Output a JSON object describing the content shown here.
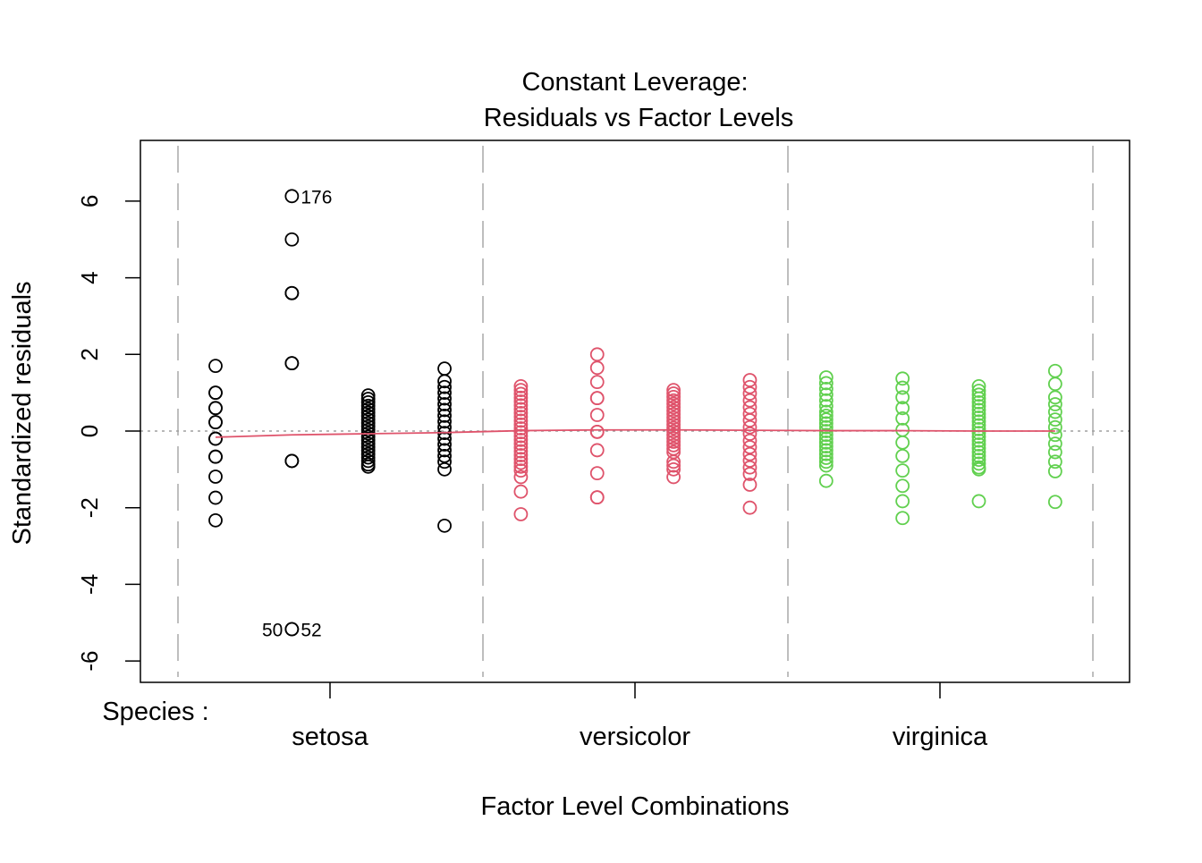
{
  "chart_data": {
    "type": "scatter",
    "title": "Constant Leverage:\nResiduals vs Factor Levels",
    "title_lines": [
      "Constant Leverage:",
      "Residuals vs Factor Levels"
    ],
    "xlabel": "Factor Level Combinations",
    "ylabel": "Standardized residuals",
    "factor_label": "Species :",
    "factor_levels": [
      "setosa",
      "versicolor",
      "virginica"
    ],
    "ylim": [
      -6.5,
      7.5
    ],
    "yticks": [
      -6,
      -4,
      -2,
      0,
      2,
      4,
      6
    ],
    "grid": false,
    "colors": {
      "setosa": "#000000",
      "versicolor": "#DF536B",
      "virginica": "#61D04F",
      "smooth": "#DF536B",
      "reference": "#A0A0A0",
      "separator": "#BEBEBE"
    },
    "columns": [
      {
        "group": "setosa",
        "values": [
          1.7,
          1.0,
          1.0,
          0.6,
          0.6,
          0.23,
          0.23,
          -0.2,
          -0.2,
          -0.67,
          -0.67,
          -1.19,
          -1.74,
          -2.33
        ]
      },
      {
        "group": "setosa",
        "values": [
          6.13,
          5.0,
          3.6,
          3.6,
          1.77,
          1.77,
          -0.78,
          -0.78,
          -5.17,
          -5.17
        ]
      },
      {
        "group": "setosa",
        "values": [
          0.93,
          0.84,
          0.75,
          0.66,
          0.57,
          0.48,
          0.39,
          0.3,
          0.21,
          0.12,
          0.03,
          -0.06,
          -0.15,
          -0.24,
          -0.33,
          -0.42,
          -0.51,
          -0.6,
          -0.69,
          -0.78,
          -0.87,
          -0.93
        ]
      },
      {
        "group": "setosa",
        "values": [
          1.63,
          1.3,
          1.15,
          1.0,
          0.85,
          0.7,
          0.55,
          0.4,
          0.25,
          0.1,
          -0.05,
          -0.2,
          -0.35,
          -0.5,
          -0.65,
          -0.8,
          -1.0,
          -2.47
        ]
      },
      {
        "group": "versicolor",
        "values": [
          1.17,
          1.07,
          0.97,
          0.87,
          0.77,
          0.67,
          0.57,
          0.47,
          0.37,
          0.27,
          0.17,
          0.07,
          -0.03,
          -0.13,
          -0.23,
          -0.33,
          -0.43,
          -0.53,
          -0.63,
          -0.73,
          -0.83,
          -0.93,
          -1.03,
          -1.2,
          -1.58,
          -2.17
        ]
      },
      {
        "group": "versicolor",
        "values": [
          2.0,
          1.65,
          1.28,
          0.86,
          0.86,
          0.42,
          -0.02,
          -0.02,
          -0.5,
          -1.1,
          -1.73,
          -1.73
        ]
      },
      {
        "group": "versicolor",
        "values": [
          1.07,
          0.98,
          0.89,
          0.8,
          0.71,
          0.62,
          0.53,
          0.44,
          0.35,
          0.26,
          0.17,
          0.08,
          -0.01,
          -0.1,
          -0.19,
          -0.28,
          -0.37,
          -0.46,
          -0.55,
          -0.8,
          -0.9,
          -1.0,
          -1.2
        ]
      },
      {
        "group": "versicolor",
        "values": [
          1.33,
          1.15,
          0.98,
          0.8,
          0.62,
          0.45,
          0.28,
          0.1,
          -0.07,
          -0.25,
          -0.42,
          -0.6,
          -0.77,
          -0.95,
          -1.12,
          -1.4,
          -2.0
        ]
      },
      {
        "group": "virginica",
        "values": [
          1.4,
          1.25,
          1.1,
          0.95,
          0.8,
          0.65,
          0.5,
          0.4,
          0.3,
          0.2,
          0.1,
          0.0,
          -0.1,
          -0.2,
          -0.3,
          -0.4,
          -0.5,
          -0.6,
          -0.7,
          -0.8,
          -0.9,
          -1.3
        ]
      },
      {
        "group": "virginica",
        "values": [
          1.37,
          1.13,
          0.88,
          0.6,
          0.33,
          0.03,
          -0.3,
          -0.65,
          -1.03,
          -1.43,
          -1.83,
          -2.27
        ]
      },
      {
        "group": "virginica",
        "values": [
          1.17,
          1.05,
          0.95,
          0.85,
          0.75,
          0.65,
          0.55,
          0.45,
          0.35,
          0.25,
          0.15,
          0.05,
          -0.05,
          -0.15,
          -0.25,
          -0.35,
          -0.45,
          -0.55,
          -0.65,
          -0.75,
          -0.85,
          -0.95,
          -1.0,
          -1.83
        ]
      },
      {
        "group": "virginica",
        "values": [
          1.57,
          1.23,
          0.88,
          0.7,
          0.5,
          0.3,
          0.1,
          -0.1,
          -0.33,
          -0.55,
          -0.8,
          -1.05,
          -1.85
        ]
      }
    ],
    "smooth": [
      -0.16,
      -0.1,
      -0.07,
      -0.04,
      0.01,
      0.03,
      0.03,
      0.02,
      0.01,
      0.01,
      0.0,
      0.0
    ],
    "annotations": [
      {
        "label": "176",
        "column": 2,
        "value": 6.13
      },
      {
        "label": "52",
        "column": 2,
        "value": -5.17
      },
      {
        "label": "50",
        "column": 2,
        "value": -5.17
      }
    ]
  }
}
